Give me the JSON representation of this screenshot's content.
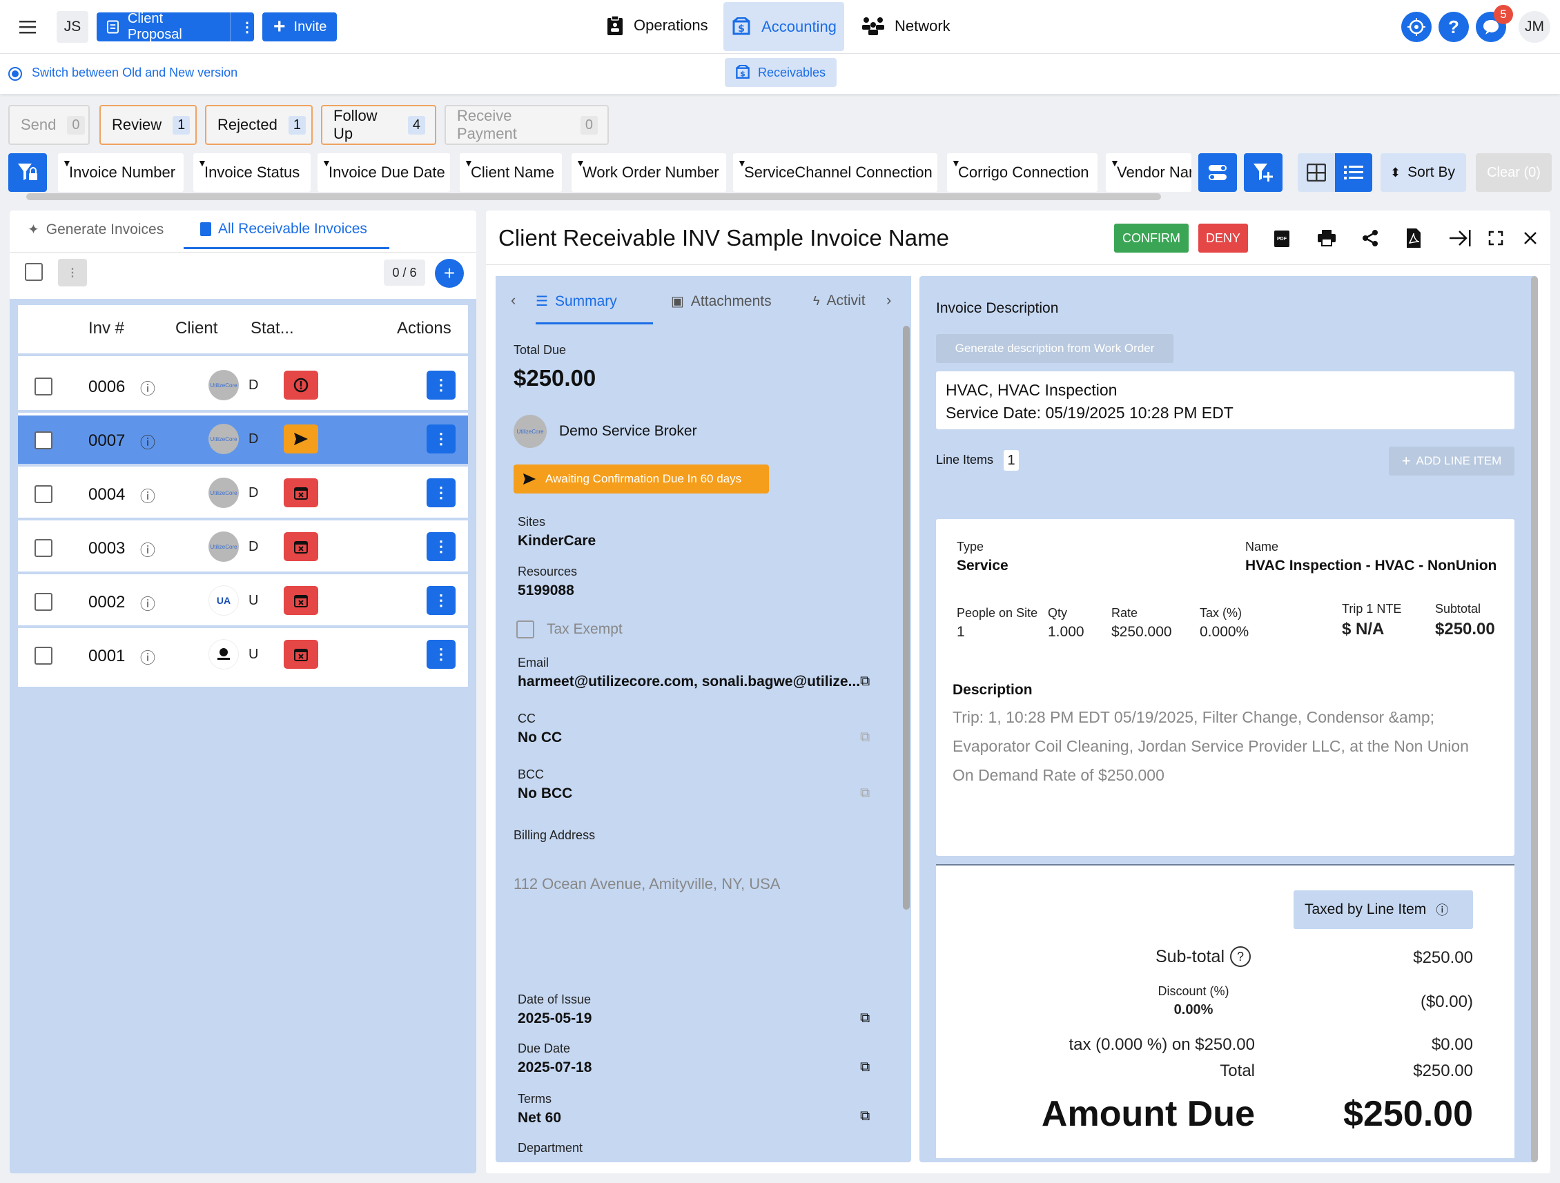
{
  "topbar": {
    "user_initials": "JS",
    "client_proposal": "Client Proposal",
    "invite": "Invite",
    "nav": [
      "Operations",
      "Accounting",
      "Network"
    ],
    "notification_count": "5",
    "account_initials": "JM"
  },
  "subbar": {
    "switch_text": "Switch between Old and New version",
    "receivables": "Receivables"
  },
  "stages": [
    {
      "label": "Send",
      "count": "0"
    },
    {
      "label": "Review",
      "count": "1"
    },
    {
      "label": "Rejected",
      "count": "1"
    },
    {
      "label": "Follow Up",
      "count": "4"
    },
    {
      "label": "Receive Payment",
      "count": "0"
    }
  ],
  "filters": [
    "Invoice Number",
    "Invoice Status",
    "Invoice Due Date",
    "Client Name",
    "Work Order Number",
    "ServiceChannel Connection",
    "Corrigo Connection",
    "Vendor Nar"
  ],
  "toolbar": {
    "sort_by": "Sort By",
    "clear": "Clear (0)"
  },
  "left": {
    "tabs": [
      "Generate Invoices",
      "All Receivable Invoices"
    ],
    "count": "0 / 6",
    "columns": [
      "Inv #",
      "Client",
      "Stat...",
      "Actions"
    ],
    "rows": [
      {
        "inv": "0006",
        "client_letter": "D",
        "status": "alert"
      },
      {
        "inv": "0007",
        "client_letter": "D",
        "status": "sent"
      },
      {
        "inv": "0004",
        "client_letter": "D",
        "status": "calendar-x"
      },
      {
        "inv": "0003",
        "client_letter": "D",
        "status": "calendar-x"
      },
      {
        "inv": "0002",
        "client_letter": "U",
        "status": "calendar-x"
      },
      {
        "inv": "0001",
        "client_letter": "U",
        "status": "calendar-x"
      }
    ]
  },
  "detail": {
    "title": "Client Receivable INV Sample Invoice Name",
    "confirm": "CONFIRM",
    "deny": "DENY",
    "tabs": [
      "Summary",
      "Attachments",
      "Activit"
    ],
    "total_due_label": "Total Due",
    "total_due": "$250.00",
    "broker": "Demo Service Broker",
    "awaiting": "Awaiting Confirmation Due In 60 days",
    "sites_label": "Sites",
    "sites": "KinderCare",
    "resources_label": "Resources",
    "resources": "5199088",
    "tax_exempt": "Tax Exempt",
    "email_label": "Email",
    "email": "harmeet@utilizecore.com, sonali.bagwe@utilize...",
    "cc_label": "CC",
    "cc": "No CC",
    "bcc_label": "BCC",
    "bcc": "No BCC",
    "billing_label": "Billing Address",
    "billing": "112 Ocean Avenue, Amityville, NY, USA",
    "issue_label": "Date of Issue",
    "issue": "2025-05-19",
    "due_label": "Due Date",
    "due": "2025-07-18",
    "terms_label": "Terms",
    "terms": "Net 60",
    "dept_label": "Department"
  },
  "invoice": {
    "desc_label": "Invoice Description",
    "gen_btn": "Generate description from Work Order",
    "desc_line1": "HVAC, HVAC Inspection",
    "desc_line2": "Service Date: 05/19/2025 10:28 PM EDT",
    "line_items_label": "Line Items",
    "line_items_count": "1",
    "add_line": "ADD LINE ITEM",
    "type_label": "Type",
    "type": "Service",
    "name_label": "Name",
    "name": "HVAC Inspection - HVAC - NonUnion",
    "people_label": "People on Site",
    "people": "1",
    "qty_label": "Qty",
    "qty": "1.000",
    "rate_label": "Rate",
    "rate": "$250.000",
    "tax_label": "Tax (%)",
    "tax": "0.000%",
    "nte_label": "Trip 1 NTE",
    "nte": "$ N/A",
    "subtotal_label": "Subtotal",
    "subtotal": "$250.00",
    "description_label": "Description",
    "description_l1": "Trip: 1, 10:28 PM EDT 05/19/2025, Filter Change, Condensor &amp;",
    "description_l2": "Evaporator Coil Cleaning, Jordan Service Provider LLC, at the Non Union",
    "description_l3": "On Demand Rate of $250.000",
    "taxed_by": "Taxed by Line Item",
    "sub_total_label": "Sub-total",
    "sub_total": "$250.00",
    "discount_label": "Discount (%)",
    "discount_pct": "0.00%",
    "discount": "($0.00)",
    "tax_line_label": "tax (0.000 %) on $250.00",
    "tax_line": "$0.00",
    "total_label": "Total",
    "total": "$250.00",
    "amount_due_label": "Amount Due",
    "amount_due": "$250.00"
  }
}
